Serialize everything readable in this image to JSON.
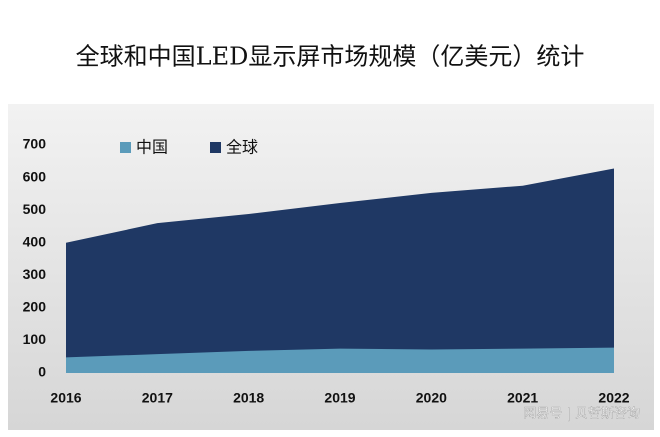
{
  "chart_data": {
    "type": "area",
    "title": "全球和中国LED显示屏市场规模（亿美元）统计",
    "categories": [
      "2016",
      "2017",
      "2018",
      "2019",
      "2020",
      "2021",
      "2022"
    ],
    "series": [
      {
        "name": "中国",
        "color": "#5b9bba",
        "values": [
          48,
          58,
          68,
          75,
          72,
          75,
          78
        ]
      },
      {
        "name": "全球",
        "color": "#1f3864",
        "values": [
          400,
          460,
          488,
          522,
          553,
          575,
          628
        ]
      }
    ],
    "ylim": [
      0,
      700
    ],
    "yticks": [
      0,
      100,
      200,
      300,
      400,
      500,
      600,
      700
    ],
    "legend": "top-left",
    "watermark": "网易号 | 贝哲斯咨询"
  }
}
